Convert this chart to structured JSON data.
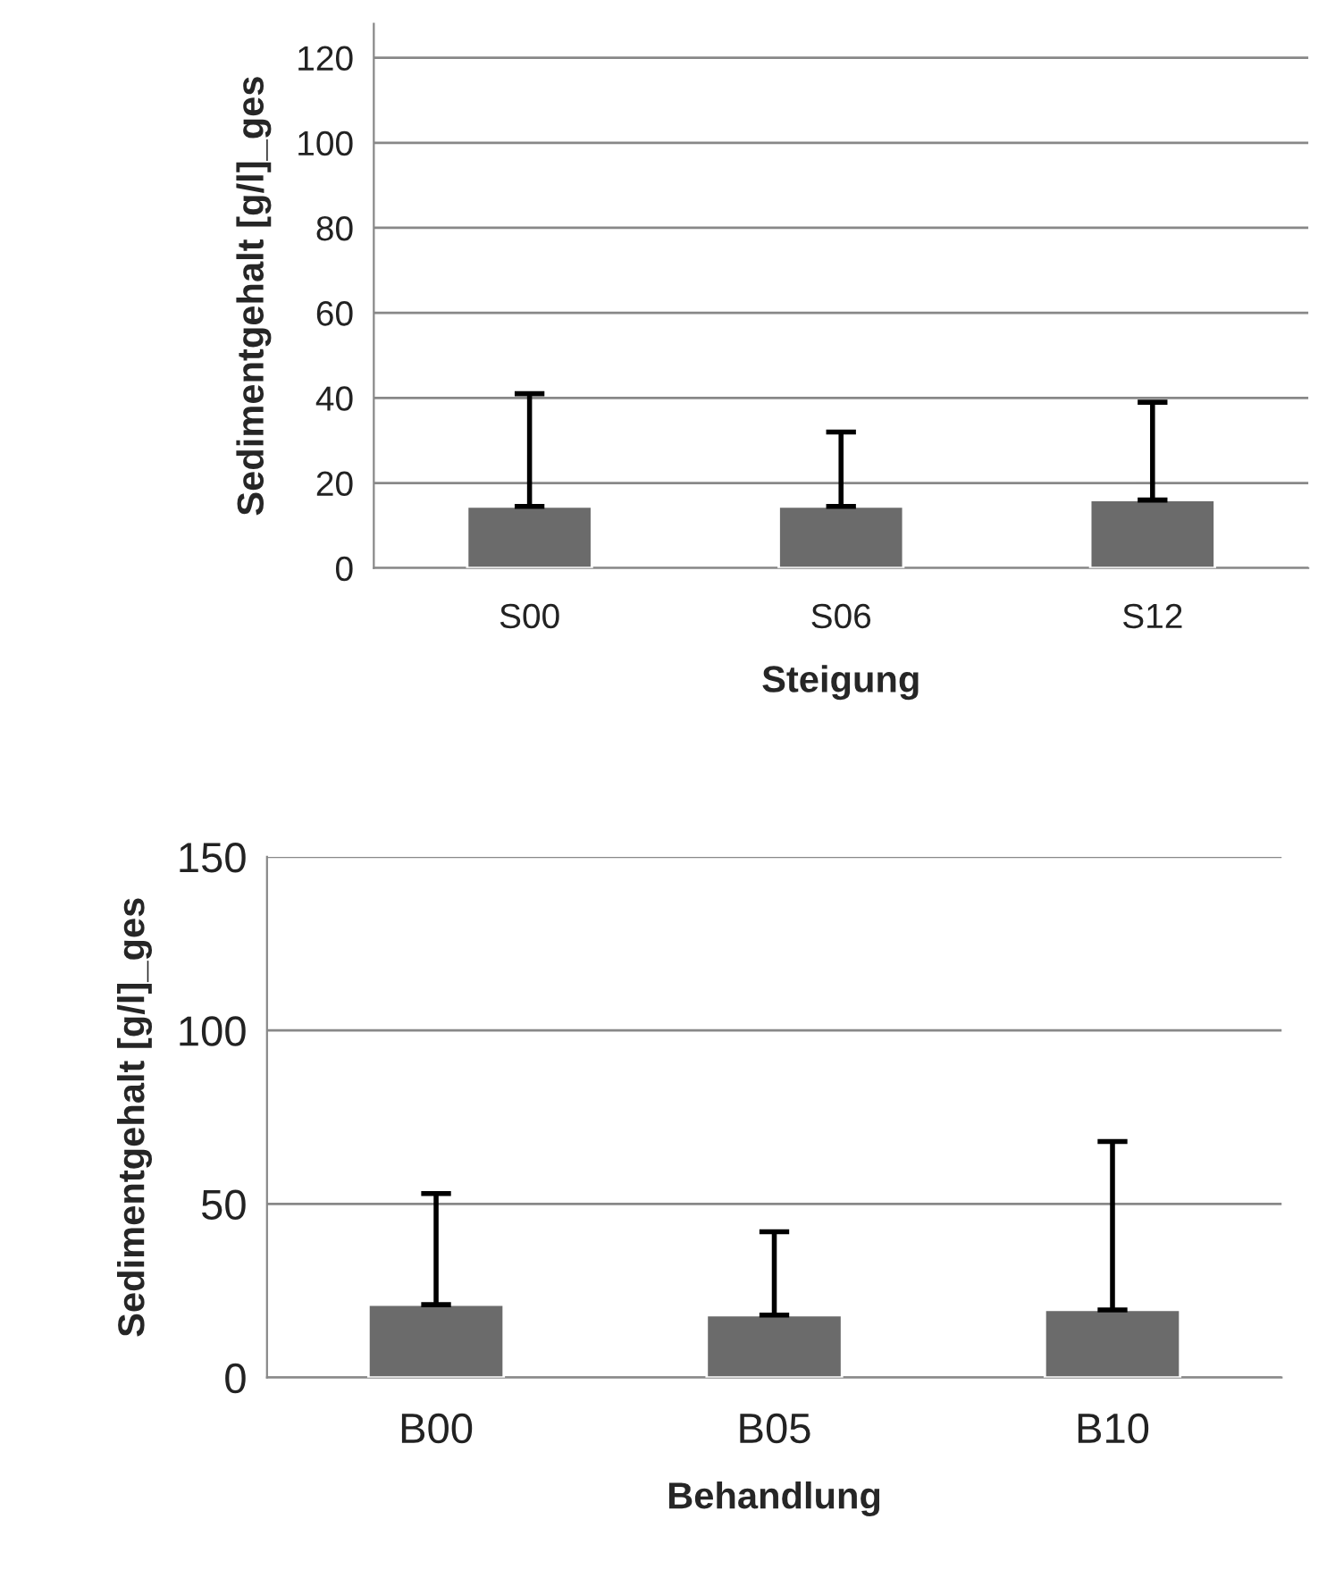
{
  "chart_data": [
    {
      "type": "bar",
      "xlabel": "Steigung",
      "ylabel": "Sedimentgehalt [g/l]_ges",
      "categories": [
        "S00",
        "S06",
        "S12"
      ],
      "values": [
        14.5,
        14.5,
        16
      ],
      "errors": [
        [
          14.5,
          41
        ],
        [
          14.5,
          32
        ],
        [
          16,
          39
        ]
      ],
      "color": "#6b6b6b",
      "ylim": [
        0,
        128
      ],
      "yticks": [
        0,
        20,
        40,
        60,
        80,
        100,
        120
      ],
      "grid": "y"
    },
    {
      "type": "bar",
      "xlabel": "Behandlung",
      "ylabel": "Sedimentgehalt [g/l]_ges",
      "categories": [
        "B00",
        "B05",
        "B10"
      ],
      "values": [
        21,
        18,
        19.5
      ],
      "errors": [
        [
          21,
          53
        ],
        [
          18,
          42
        ],
        [
          19.5,
          68
        ]
      ],
      "color": "#6b6b6b",
      "ylim": [
        0,
        150
      ],
      "yticks": [
        0,
        50,
        100,
        150
      ],
      "grid": "y"
    }
  ]
}
